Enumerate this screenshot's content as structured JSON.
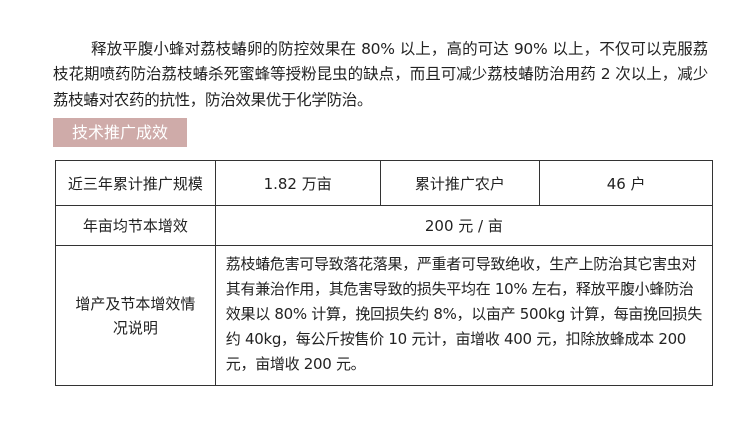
{
  "paragraph": "释放平腹小蜂对荔枝蝽卵的防控效果在 80% 以上，高的可达 90% 以上，不仅可以克服荔枝花期喷药防治荔枝蝽杀死蜜蜂等授粉昆虫的缺点，而且可减少荔枝蝽防治用药 2 次以上，减少荔枝蝽对农药的抗性，防治效果优于化学防治。",
  "section_label": "技术推广成效",
  "table": {
    "row1": {
      "label1": "近三年累计推广规模",
      "value1": "1.82 万亩",
      "label2": "累计推广农户",
      "value2": "46 户"
    },
    "row2": {
      "label": "年亩均节本增效",
      "value": "200 元 / 亩"
    },
    "row3": {
      "label": "增产及节本增效情况说明",
      "value": "荔枝蝽危害可导致落花落果，严重者可导致绝收，生产上防治其它害虫对其有兼治作用，其危害导致的损失平均在 10% 左右，释放平腹小蜂防治效果以 80% 计算，挽回损失约 8%，以亩产 500kg 计算，每亩挽回损失约 40kg，每公斤按售价 10 元计，亩增收 400 元，扣除放蜂成本 200 元，亩增收 200 元。"
    }
  }
}
